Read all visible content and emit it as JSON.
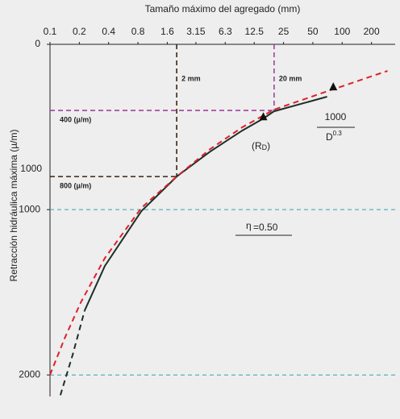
{
  "chart_data": {
    "type": "line",
    "title": "Tamaño máximo del agregado (mm)",
    "y_label": "Retracción hidráulica máxima (µ/m)",
    "x_log": true,
    "y_reversed": true,
    "xlim": [
      0.1,
      350
    ],
    "xticks": [
      0.1,
      0.2,
      0.4,
      0.8,
      1.6,
      3.15,
      6.3,
      12.5,
      25,
      50,
      100,
      200
    ],
    "ylim": [
      0,
      2130
    ],
    "yticks": [
      0,
      1000,
      2000
    ],
    "hlines": [
      1000,
      2000
    ],
    "hline_color": "#3aa0b4",
    "series": [
      {
        "color": "#1e2e2a",
        "dash": true,
        "x": [
          0.128,
          0.171,
          0.227
        ],
        "values": [
          2122,
          1878,
          1610
        ]
      },
      {
        "color": "#1e2e2a",
        "dash": false,
        "x": [
          0.227,
          0.366,
          0.865,
          2.0,
          4.4,
          9.4,
          15.5,
          20,
          70
        ],
        "values": [
          1610,
          1341,
          1010,
          800,
          649,
          522,
          449,
          405,
          317
        ]
      },
      {
        "color": "#e0202a",
        "dash": true,
        "x": [
          0.1,
          0.141,
          0.207,
          0.366,
          0.865,
          2.0,
          4.4,
          9.4,
          20,
          63.5,
          292
        ],
        "values": [
          2000,
          1780,
          1561,
          1293,
          990,
          800,
          634,
          502,
          395,
          293,
          161
        ]
      }
    ],
    "guides": [
      {
        "x": 2,
        "y": 800,
        "color": "#3b2313",
        "label": "2 mm",
        "y_label": "800 (µ/m)"
      },
      {
        "x": 20,
        "y": 400,
        "color": "#a0449a",
        "label": "20 mm",
        "y_label": "400 (µ/m)"
      }
    ],
    "y_annotation": "1000",
    "markers": [
      {
        "x": 15.5,
        "y": 440
      },
      {
        "x": 81,
        "y": 259
      }
    ],
    "rd_label": [
      "(R",
      "D",
      ")"
    ],
    "formula": {
      "numerator": "1000",
      "denominator": "D",
      "exponent": "0.3"
    },
    "eta": [
      "η",
      "=0.50"
    ]
  }
}
